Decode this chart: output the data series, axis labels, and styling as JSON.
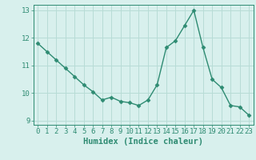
{
  "x": [
    0,
    1,
    2,
    3,
    4,
    5,
    6,
    7,
    8,
    9,
    10,
    11,
    12,
    13,
    14,
    15,
    16,
    17,
    18,
    19,
    20,
    21,
    22,
    23
  ],
  "y": [
    11.8,
    11.5,
    11.2,
    10.9,
    10.6,
    10.3,
    10.05,
    9.75,
    9.85,
    9.7,
    9.65,
    9.55,
    9.75,
    10.3,
    11.65,
    11.9,
    12.45,
    13.0,
    11.65,
    10.5,
    10.2,
    9.55,
    9.5,
    9.2
  ],
  "line_color": "#2e8b72",
  "marker_color": "#2e8b72",
  "bg_color": "#d8f0ed",
  "grid_color": "#b8dcd6",
  "axis_color": "#2e8b72",
  "xlabel": "Humidex (Indice chaleur)",
  "ylim": [
    8.85,
    13.2
  ],
  "xlim": [
    -0.5,
    23.5
  ],
  "yticks": [
    9,
    10,
    11,
    12,
    13
  ],
  "xticks": [
    0,
    1,
    2,
    3,
    4,
    5,
    6,
    7,
    8,
    9,
    10,
    11,
    12,
    13,
    14,
    15,
    16,
    17,
    18,
    19,
    20,
    21,
    22,
    23
  ],
  "xlabel_fontsize": 7.5,
  "tick_fontsize": 6.5,
  "line_width": 1.0,
  "marker_size": 2.5
}
